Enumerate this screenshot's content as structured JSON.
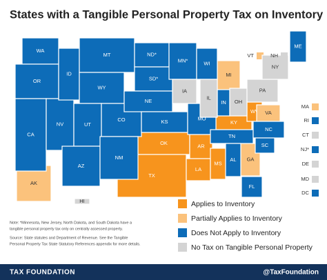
{
  "header": {
    "title": "States with a Tangible Personal Property Tax on Inventory"
  },
  "legend": [
    {
      "label": "Applies to Inventory",
      "color": "#f7941d",
      "states": [
        "OK",
        "TX",
        "AR",
        "LA",
        "MS",
        "KY",
        "WV"
      ]
    },
    {
      "label": "Partially Applies to Inventory",
      "color": "#fbc27c",
      "states": [
        "AK",
        "MI",
        "GA",
        "VA",
        "VT",
        "MA"
      ]
    },
    {
      "label": "Does Not Apply to Inventory",
      "color": "#0d6cb8",
      "states": [
        "WA",
        "OR",
        "CA",
        "NV",
        "ID",
        "MT",
        "WY",
        "UT",
        "AZ",
        "CO",
        "NM",
        "ND*",
        "SD*",
        "NE",
        "KS",
        "MN*",
        "WI",
        "MO",
        "IN",
        "TN",
        "NC",
        "SC",
        "AL",
        "FL",
        "ME",
        "RI",
        "NJ*",
        "DC"
      ]
    },
    {
      "label": "No Tax on Tangible Personal Property",
      "color": "#d4d4d4",
      "states": [
        "IA",
        "IL",
        "OH",
        "PA",
        "NY",
        "NH",
        "CT",
        "DE",
        "MD",
        "HI"
      ]
    }
  ],
  "notes": [
    "Note: *Minnesota, New Jersey, North Dakota, and South Dakota have a",
    "tangible personal property tax only on centrally assessed property.",
    "Source: State statutes and Department of Revenue. See the Tangible",
    "Personal Property Tax State Statutory References appendix for more details."
  ],
  "footer": {
    "brand": "TAX FOUNDATION",
    "handle": "@TaxFoundation"
  }
}
